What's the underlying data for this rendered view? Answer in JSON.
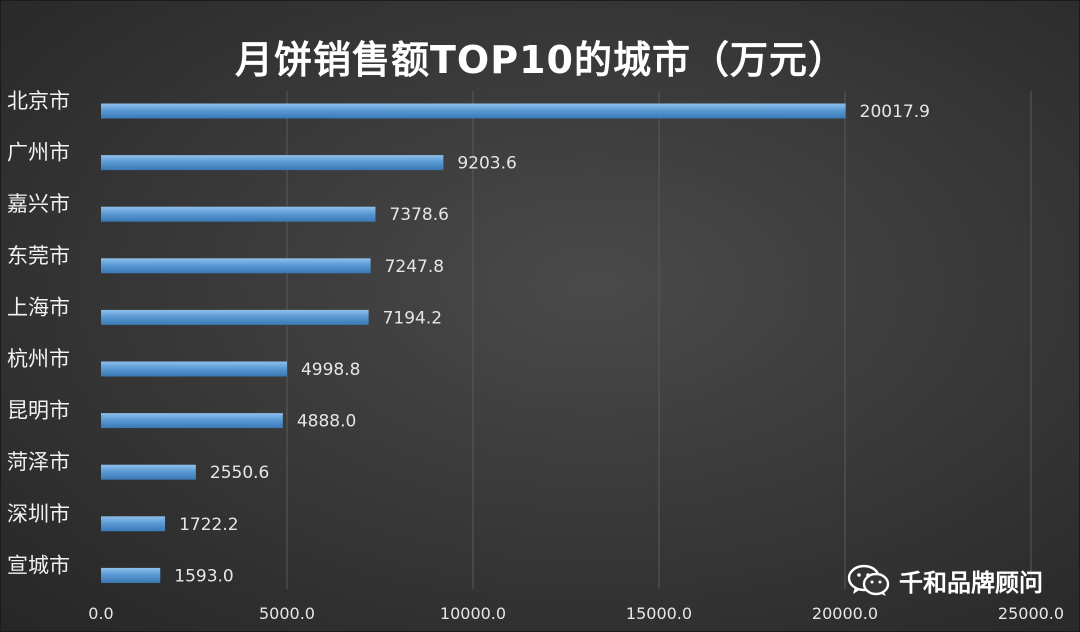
{
  "chart_data": {
    "type": "bar",
    "orientation": "horizontal",
    "title": "月饼销售额TOP10的城市（万元）",
    "categories": [
      "北京市",
      "广州市",
      "嘉兴市",
      "东莞市",
      "上海市",
      "杭州市",
      "昆明市",
      "菏泽市",
      "深圳市",
      "宣城市"
    ],
    "values": [
      20017.9,
      9203.6,
      7378.6,
      7247.8,
      7194.2,
      4998.8,
      4888.0,
      2550.6,
      1722.2,
      1593.0
    ],
    "value_labels": [
      "20017.9",
      "9203.6",
      "7378.6",
      "7247.8",
      "7194.2",
      "4998.8",
      "4888.0",
      "2550.6",
      "1722.2",
      "1593.0"
    ],
    "xlim": [
      0,
      25000
    ],
    "x_ticks": [
      0,
      5000,
      10000,
      15000,
      20000,
      25000
    ],
    "x_tick_labels": [
      "0.0",
      "5000.0",
      "10000.0",
      "15000.0",
      "20000.0",
      "25000.0"
    ],
    "grid": "vertical",
    "bar_color": "#5b9bd5"
  },
  "watermark": {
    "icon": "wechat-icon",
    "text": "千和品牌顾问"
  }
}
